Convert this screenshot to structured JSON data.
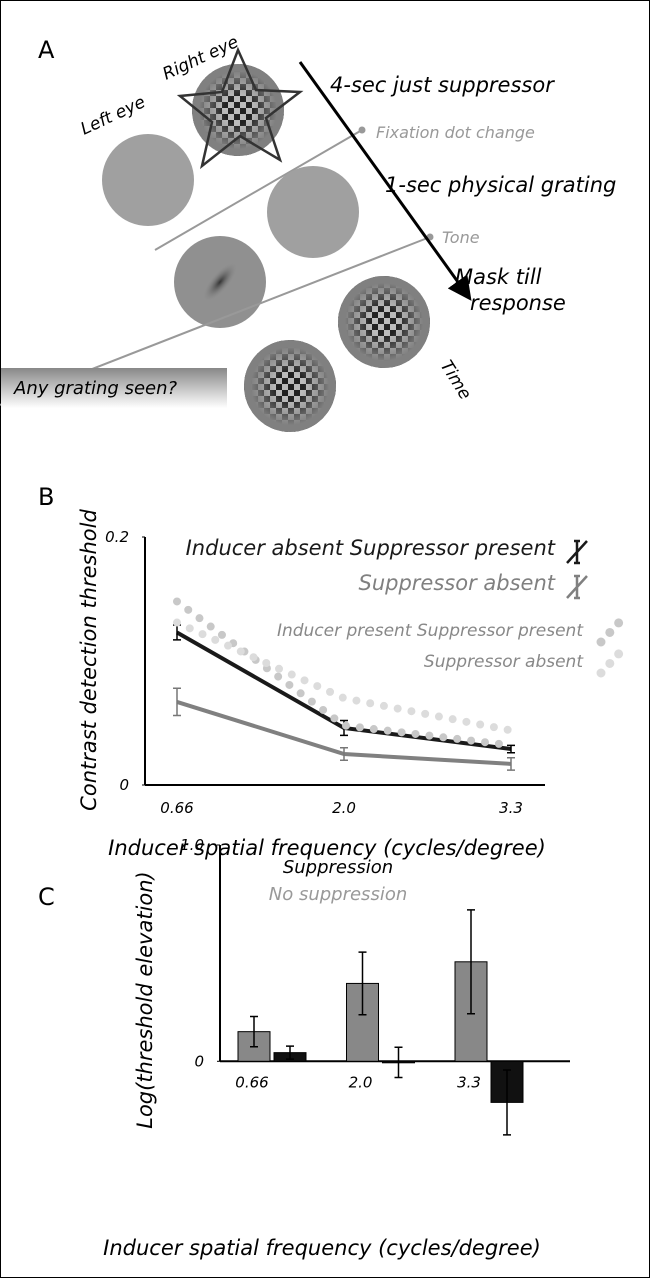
{
  "panel_a": {
    "panel_label": "A",
    "left_eye": "Left eye",
    "right_eye": "Right eye",
    "step1": "4-sec just suppressor",
    "event1": "Fixation dot change",
    "step2": "1-sec physical grating",
    "event2": "Tone",
    "step3_line1": "Mask till",
    "step3_line2": "response",
    "question": "Any grating seen?",
    "time": "Time"
  },
  "chart_data": [
    {
      "type": "line",
      "panel_label": "B",
      "y_label": "Contrast detection threshold",
      "x_label": "Inducer spatial frequency (cycles/degree)",
      "categories": [
        "0.66",
        "2.0",
        "3.3"
      ],
      "ylim": [
        0,
        0.2
      ],
      "yticks": [
        0,
        0.2
      ],
      "series": [
        {
          "name": "Inducer absent Suppressor present",
          "color": "#1a1a1a",
          "style": "solid",
          "values": [
            0.123,
            0.046,
            0.029
          ],
          "errors": [
            0.006,
            0.006,
            0.003
          ]
        },
        {
          "name": "Suppressor absent",
          "color": "#808080",
          "style": "solid",
          "values": [
            0.067,
            0.025,
            0.017
          ],
          "errors": [
            0.011,
            0.005,
            0.005
          ]
        },
        {
          "name": "Inducer present Suppressor present",
          "color": "#c8c8c8",
          "style": "dotted",
          "values": [
            0.148,
            0.048,
            0.032
          ]
        },
        {
          "name": "Suppressor absent",
          "color": "#dcdcdc",
          "style": "dotted",
          "values": [
            0.131,
            0.07,
            0.044
          ]
        }
      ]
    },
    {
      "type": "bar",
      "panel_label": "C",
      "y_label": "Log(threshold elevation)",
      "x_label": "Inducer spatial frequency (cycles/degree)",
      "categories": [
        "0.66",
        "2.0",
        "3.3"
      ],
      "ylim": [
        -0.35,
        1.0
      ],
      "yticks": [
        0,
        {
          "value": 1,
          "label": "1.0"
        }
      ],
      "series": [
        {
          "name": "Suppression",
          "color": "#111111",
          "values": [
            0.04,
            -0.005,
            -0.19
          ],
          "errors": [
            0.03,
            0.07,
            0.15
          ]
        },
        {
          "name": "No suppression",
          "color": "#888888",
          "values": [
            0.137,
            0.36,
            0.46
          ],
          "errors": [
            0.07,
            0.145,
            0.24
          ]
        }
      ]
    }
  ]
}
